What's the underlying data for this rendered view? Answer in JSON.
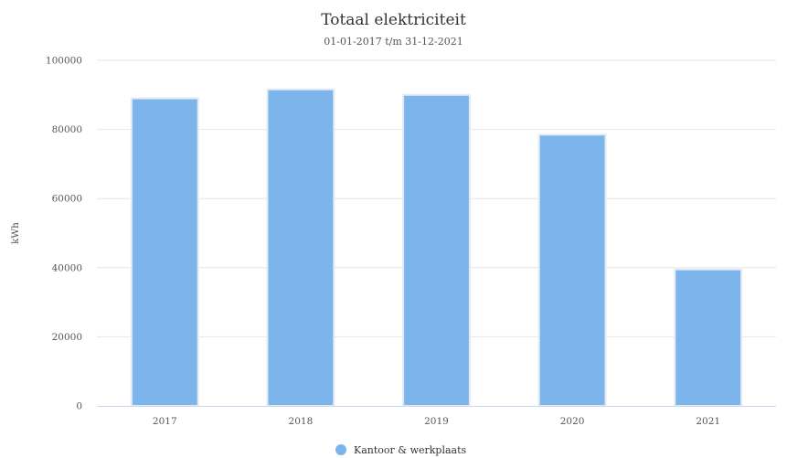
{
  "chart_data": {
    "type": "bar",
    "title": "Totaal elektriciteit",
    "subtitle": "01-01-2017 t/m 31-12-2021",
    "xlabel": "",
    "ylabel": "kWh",
    "ylim": [
      0,
      100000
    ],
    "yticks": [
      "0",
      "20000",
      "40000",
      "60000",
      "80000",
      "100000"
    ],
    "grid": true,
    "legend_position": "bottom-center",
    "categories": [
      "2017",
      "2018",
      "2019",
      "2020",
      "2021"
    ],
    "series": [
      {
        "name": "Kantoor & werkplaats",
        "color": "#7cb5ec",
        "values": [
          89000,
          91600,
          90000,
          78500,
          39500
        ]
      }
    ]
  }
}
